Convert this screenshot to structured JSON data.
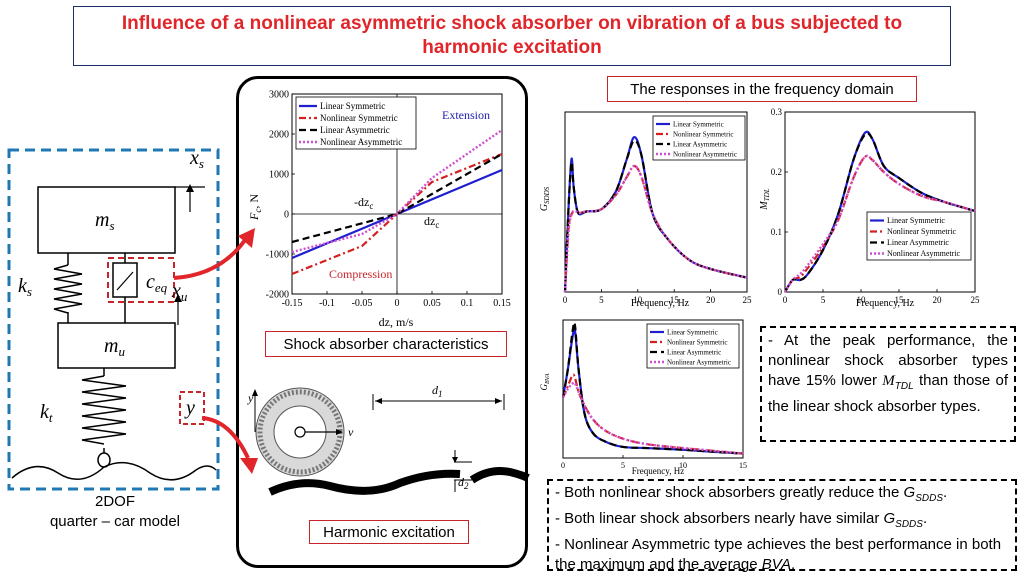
{
  "title": "Influence of a nonlinear asymmetric shock absorber on vibration of a bus subjected to harmonic excitation",
  "model": {
    "caption_line1": "2DOF",
    "caption_line2": "quarter – car model",
    "labels": {
      "xs": "x",
      "xs_sub": "s",
      "ms": "m",
      "ms_sub": "s",
      "ks": "k",
      "ks_sub": "s",
      "ceq": "c",
      "ceq_sub": "eq",
      "xu": "x",
      "xu_sub": "u",
      "mu": "m",
      "mu_sub": "u",
      "kt": "k",
      "kt_sub": "t",
      "y": "y"
    }
  },
  "shock_chart_caption": "Shock absorber characteristics",
  "excitation": {
    "caption": "Harmonic excitation",
    "labels": {
      "d1": "d",
      "d1_sub": "1",
      "d2": "d",
      "d2_sub": "2",
      "y": "y",
      "v": "v"
    }
  },
  "freq_domain_caption": "The responses in the frequency domain",
  "notes": {
    "right_line1": "- At the peak performance, the nonlinear shock absorber types have 15% lower ",
    "right_sym": "M",
    "right_sub": "TDL",
    "right_line2": " than those of the linear shock absorber types.",
    "bottom": [
      {
        "pre": "- Both nonlinear shock absorbers greatly reduce the ",
        "sym": "G",
        "sub": "SDDS",
        "post": "."
      },
      {
        "pre": "- Both linear shock absorbers nearly have similar ",
        "sym": "G",
        "sub": "SDDS",
        "post": "."
      },
      {
        "pre": "- Nonlinear Asymmetric type achieves the best performance in both the maximum and the average ",
        "sym": "BVA",
        "sub": "",
        "post": "."
      }
    ]
  },
  "colors": {
    "title": "#e0262b",
    "linear_sym": "#1f1fd0",
    "nonlinear_sym": "#d42020",
    "linear_asym": "#000000",
    "nonlinear_asym": "#d050d0",
    "dash_blue": "#1f78b4",
    "red": "#c8252b"
  },
  "chart_data": [
    {
      "type": "line",
      "id": "shock",
      "xlabel": "dz, m/s",
      "ylabel": "F",
      "ylabel_sub": "c",
      "ylabel_unit": ", N",
      "xlim": [
        -0.15,
        0.15
      ],
      "ylim": [
        -2000,
        3000
      ],
      "xticks": [
        "-0.15",
        "-0.1",
        "-0.05",
        "0",
        "0.05",
        "0.1",
        "0.15"
      ],
      "yticks": [
        "-2000",
        "-1000",
        "0",
        "1000",
        "2000",
        "3000"
      ],
      "annotations": {
        "extension": "Extension",
        "compression": "Compression",
        "neg_dz": "-dz",
        "neg_dz_sub": "c",
        "pos_dz": "dz",
        "pos_dz_sub": "c"
      },
      "series": [
        {
          "name": "Linear Symmetric",
          "x": [
            -0.15,
            0.15
          ],
          "y": [
            -1100,
            1100
          ]
        },
        {
          "name": "Nonlinear Symmetric",
          "x": [
            -0.15,
            -0.05,
            0,
            0.05,
            0.15
          ],
          "y": [
            -1500,
            -800,
            0,
            800,
            1500
          ]
        },
        {
          "name": "Linear Asymmetric",
          "x": [
            -0.15,
            0,
            0.15
          ],
          "y": [
            -700,
            0,
            1500
          ]
        },
        {
          "name": "Nonlinear Asymmetric",
          "x": [
            -0.15,
            -0.05,
            0,
            0.05,
            0.15
          ],
          "y": [
            -950,
            -500,
            0,
            900,
            2100
          ]
        }
      ]
    },
    {
      "type": "line",
      "id": "gsdds",
      "xlabel": "Frequency, Hz",
      "ylabel": "G",
      "ylabel_sub": "SDDS",
      "xlim": [
        0,
        25
      ],
      "ylim": [
        0,
        2.5
      ],
      "xticks": [
        "0",
        "5",
        "10",
        "15",
        "20",
        "25"
      ],
      "yticks": [],
      "series": [
        {
          "name": "Linear Symmetric",
          "x": [
            0,
            0.5,
            0.9,
            1.2,
            1.8,
            3,
            5,
            7,
            8.5,
            9.5,
            10.5,
            12,
            14,
            17,
            20,
            25
          ],
          "y": [
            0,
            1.2,
            1.85,
            1.45,
            1.1,
            1.12,
            1.15,
            1.4,
            1.85,
            2.15,
            1.9,
            1.1,
            0.75,
            0.45,
            0.32,
            0.2
          ]
        },
        {
          "name": "Nonlinear Symmetric",
          "x": [
            0,
            0.5,
            1,
            1.5,
            2,
            3,
            5,
            7,
            8.5,
            9.5,
            10.5,
            12,
            14,
            17,
            20,
            25
          ],
          "y": [
            0,
            0.9,
            1.1,
            1.12,
            1.1,
            1.12,
            1.15,
            1.35,
            1.6,
            1.75,
            1.6,
            1.1,
            0.75,
            0.45,
            0.32,
            0.2
          ]
        },
        {
          "name": "Linear Asymmetric",
          "x": [
            0,
            0.5,
            0.9,
            1.2,
            1.8,
            3,
            5,
            7,
            8.5,
            9.5,
            10.5,
            12,
            14,
            17,
            20,
            25
          ],
          "y": [
            0,
            1.2,
            1.8,
            1.45,
            1.1,
            1.12,
            1.15,
            1.4,
            1.85,
            2.1,
            1.9,
            1.1,
            0.75,
            0.45,
            0.32,
            0.2
          ]
        },
        {
          "name": "Nonlinear Asymmetric",
          "x": [
            0,
            0.5,
            1,
            1.5,
            2,
            3,
            5,
            7,
            8.5,
            9.5,
            10.5,
            12,
            14,
            17,
            20,
            25
          ],
          "y": [
            0,
            0.85,
            1.1,
            1.12,
            1.1,
            1.12,
            1.15,
            1.35,
            1.6,
            1.75,
            1.6,
            1.1,
            0.75,
            0.45,
            0.32,
            0.2
          ]
        }
      ]
    },
    {
      "type": "line",
      "id": "mtdl",
      "xlabel": "Frequency, Hz",
      "ylabel": "M",
      "ylabel_sub": "TDL",
      "xlim": [
        0,
        25
      ],
      "ylim": [
        0,
        0.3
      ],
      "xticks": [
        "0",
        "5",
        "10",
        "15",
        "20",
        "25"
      ],
      "yticks": [
        "0",
        "0.1",
        "0.2",
        "0.3"
      ],
      "series": [
        {
          "name": "Linear Symmetric",
          "x": [
            0,
            1,
            2,
            3,
            5,
            7,
            9,
            10.5,
            11.5,
            13,
            15,
            18,
            21,
            25
          ],
          "y": [
            0,
            0.02,
            0.02,
            0.03,
            0.07,
            0.13,
            0.22,
            0.265,
            0.255,
            0.21,
            0.19,
            0.165,
            0.15,
            0.135
          ]
        },
        {
          "name": "Nonlinear Symmetric",
          "x": [
            0,
            1,
            2,
            3,
            5,
            7,
            9,
            10.5,
            11.5,
            13,
            15,
            18,
            21,
            25
          ],
          "y": [
            0,
            0.02,
            0.025,
            0.04,
            0.075,
            0.12,
            0.19,
            0.225,
            0.22,
            0.2,
            0.18,
            0.16,
            0.15,
            0.135
          ]
        },
        {
          "name": "Linear Asymmetric",
          "x": [
            0,
            1,
            2,
            3,
            5,
            7,
            9,
            10.5,
            11.5,
            13,
            15,
            18,
            21,
            25
          ],
          "y": [
            0,
            0.02,
            0.02,
            0.03,
            0.07,
            0.13,
            0.22,
            0.262,
            0.255,
            0.21,
            0.19,
            0.165,
            0.15,
            0.135
          ]
        },
        {
          "name": "Nonlinear Asymmetric",
          "x": [
            0,
            1,
            2,
            3,
            5,
            7,
            9,
            10.5,
            11.5,
            13,
            15,
            18,
            21,
            25
          ],
          "y": [
            0,
            0.02,
            0.03,
            0.045,
            0.08,
            0.12,
            0.19,
            0.225,
            0.22,
            0.2,
            0.18,
            0.16,
            0.15,
            0.135
          ]
        }
      ]
    },
    {
      "type": "line",
      "id": "gbva",
      "xlabel": "Frequency, Hz",
      "ylabel": "G",
      "ylabel_sub": "BVA",
      "xlim": [
        0,
        15
      ],
      "ylim": [
        0,
        2.5
      ],
      "xticks": [
        "0",
        "5",
        "10",
        "15"
      ],
      "yticks": [],
      "series": [
        {
          "name": "Linear Symmetric",
          "x": [
            0,
            0.4,
            0.8,
            1,
            1.3,
            1.8,
            2.5,
            3.5,
            5,
            7,
            10,
            12,
            15
          ],
          "y": [
            1.1,
            1.6,
            2.2,
            2.3,
            1.6,
            0.8,
            0.45,
            0.3,
            0.2,
            0.18,
            0.15,
            0.12,
            0.08
          ]
        },
        {
          "name": "Nonlinear Symmetric",
          "x": [
            0,
            0.4,
            0.8,
            1,
            1.3,
            1.8,
            2.5,
            3.5,
            5,
            7,
            10,
            12,
            15
          ],
          "y": [
            1.1,
            1.3,
            1.5,
            1.45,
            1.2,
            0.95,
            0.7,
            0.5,
            0.35,
            0.25,
            0.18,
            0.14,
            0.08
          ]
        },
        {
          "name": "Linear Asymmetric",
          "x": [
            0,
            0.4,
            0.8,
            1,
            1.3,
            1.8,
            2.5,
            3.5,
            5,
            7,
            10,
            12,
            15
          ],
          "y": [
            1.1,
            1.6,
            2.3,
            2.4,
            1.6,
            0.8,
            0.45,
            0.3,
            0.2,
            0.18,
            0.15,
            0.12,
            0.08
          ]
        },
        {
          "name": "Nonlinear Asymmetric",
          "x": [
            0,
            0.4,
            0.8,
            1,
            1.3,
            1.8,
            2.5,
            3.5,
            5,
            7,
            10,
            12,
            15
          ],
          "y": [
            1.1,
            1.25,
            1.35,
            1.35,
            1.2,
            0.95,
            0.7,
            0.5,
            0.35,
            0.25,
            0.18,
            0.14,
            0.08
          ]
        }
      ]
    }
  ]
}
